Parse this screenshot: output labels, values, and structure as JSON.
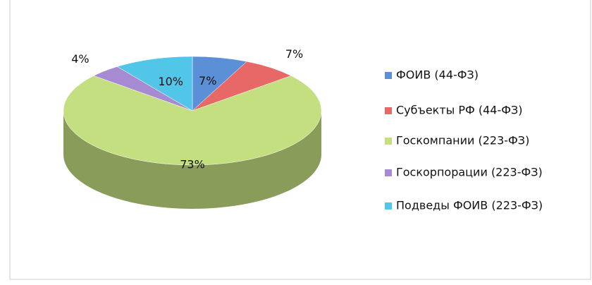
{
  "chart_data": {
    "type": "pie3d",
    "categories": [
      "ФОИВ (44-ФЗ)",
      "Субъекты РФ (44-ФЗ)",
      "Госкомпании (223-ФЗ)",
      "Госкорпорации (223-ФЗ)",
      "Подведы ФОИВ (223-ФЗ)"
    ],
    "values": [
      7,
      7,
      73,
      4,
      10
    ],
    "value_labels": [
      "7%",
      "7%",
      "73%",
      "4%",
      "10%"
    ],
    "colors": [
      "#5b8fd6",
      "#e86868",
      "#c4df80",
      "#a68bd2",
      "#52c6e8"
    ],
    "legend": "right"
  }
}
